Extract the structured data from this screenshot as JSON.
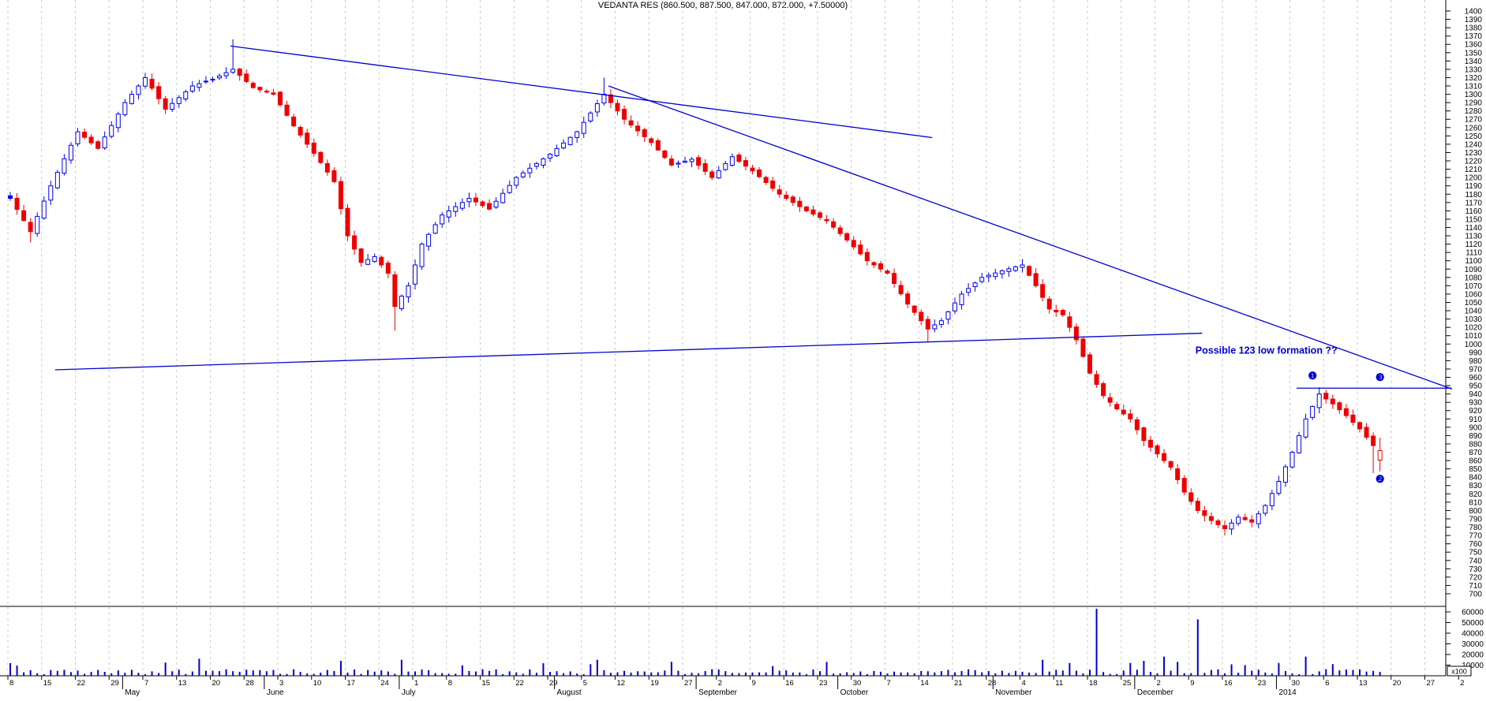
{
  "window": {
    "title": "VEDANTA RES (860.500, 887.500, 847.000, 872.000, +7.50000)"
  },
  "colors": {
    "up_candle": "#0000EE",
    "down_candle": "#EE0000",
    "trendline": "#0000CD",
    "annotation_text": "#0000CD",
    "grid": "#C9C9C9",
    "axis": "#000000",
    "volume_bar": "#0000CD",
    "background": "#FFFFFF"
  },
  "chart_data": {
    "type": "candlestick",
    "symbol": "VEDANTA RES",
    "title": "VEDANTA RES (860.500, 887.500, 847.000, 872.000, +7.50000)",
    "last_quote": {
      "open": 860.5,
      "high": 887.5,
      "low": 847.0,
      "close": 872.0,
      "change_label": "+7.50000"
    },
    "y_axis": {
      "min": 700,
      "max": 1400,
      "tick_step": 10
    },
    "volume_axis": {
      "labels": [
        10000,
        20000,
        30000,
        40000,
        50000,
        60000
      ],
      "multiplier_label": "x100"
    },
    "x_axis": {
      "week_labels": [
        "8",
        "15",
        "22",
        "29",
        "7",
        "13",
        "20",
        "28",
        "3",
        "10",
        "17",
        "24",
        "1",
        "8",
        "15",
        "22",
        "29",
        "5",
        "12",
        "19",
        "27",
        "2",
        "9",
        "16",
        "23",
        "30",
        "7",
        "14",
        "21",
        "28",
        "4",
        "11",
        "18",
        "25",
        "2",
        "9",
        "16",
        "23",
        "30",
        "6",
        "13",
        "20",
        "27",
        "2"
      ],
      "month_labels": [
        {
          "label": "May",
          "slot": 17
        },
        {
          "label": "June",
          "slot": 38
        },
        {
          "label": "July",
          "slot": 58
        },
        {
          "label": "August",
          "slot": 81
        },
        {
          "label": "September",
          "slot": 102
        },
        {
          "label": "October",
          "slot": 123
        },
        {
          "label": "November",
          "slot": 146
        },
        {
          "label": "December",
          "slot": 167
        },
        {
          "label": "2014",
          "slot": 188
        }
      ]
    },
    "num_candles": 204,
    "price_anchors_note": "approximate daily close path read from pixels; [slot, close, high_spike, low_spike]",
    "price_anchors": [
      [
        0,
        1175,
        null,
        null
      ],
      [
        3,
        1135,
        null,
        1122
      ],
      [
        6,
        1190,
        null,
        null
      ],
      [
        10,
        1255,
        null,
        null
      ],
      [
        13,
        1235,
        null,
        null
      ],
      [
        17,
        1290,
        null,
        null
      ],
      [
        20,
        1320,
        null,
        null
      ],
      [
        23,
        1282,
        null,
        null
      ],
      [
        27,
        1310,
        null,
        null
      ],
      [
        30,
        1318,
        null,
        null
      ],
      [
        33,
        1330,
        1366,
        null
      ],
      [
        36,
        1308,
        null,
        null
      ],
      [
        39,
        1300,
        null,
        null
      ],
      [
        42,
        1262,
        null,
        null
      ],
      [
        44,
        1240,
        null,
        null
      ],
      [
        46,
        1218,
        null,
        null
      ],
      [
        48,
        1195,
        null,
        null
      ],
      [
        50,
        1130,
        null,
        null
      ],
      [
        52,
        1098,
        null,
        null
      ],
      [
        54,
        1105,
        null,
        null
      ],
      [
        56,
        1085,
        null,
        null
      ],
      [
        57,
        1045,
        null,
        1016
      ],
      [
        59,
        1070,
        null,
        null
      ],
      [
        61,
        1120,
        null,
        null
      ],
      [
        64,
        1155,
        null,
        null
      ],
      [
        68,
        1175,
        null,
        null
      ],
      [
        71,
        1162,
        null,
        null
      ],
      [
        75,
        1200,
        null,
        null
      ],
      [
        80,
        1228,
        null,
        null
      ],
      [
        84,
        1255,
        null,
        null
      ],
      [
        88,
        1300,
        1320,
        null
      ],
      [
        91,
        1270,
        null,
        null
      ],
      [
        95,
        1242,
        null,
        null
      ],
      [
        98,
        1215,
        null,
        null
      ],
      [
        101,
        1222,
        null,
        null
      ],
      [
        104,
        1200,
        null,
        null
      ],
      [
        107,
        1225,
        null,
        null
      ],
      [
        110,
        1208,
        null,
        null
      ],
      [
        114,
        1180,
        null,
        null
      ],
      [
        118,
        1160,
        null,
        null
      ],
      [
        121,
        1148,
        null,
        null
      ],
      [
        124,
        1125,
        null,
        null
      ],
      [
        127,
        1100,
        null,
        null
      ],
      [
        130,
        1085,
        null,
        null
      ],
      [
        133,
        1048,
        null,
        null
      ],
      [
        136,
        1018,
        null,
        1002
      ],
      [
        138,
        1028,
        null,
        null
      ],
      [
        141,
        1060,
        null,
        null
      ],
      [
        144,
        1080,
        null,
        null
      ],
      [
        147,
        1088,
        null,
        null
      ],
      [
        150,
        1095,
        1102,
        null
      ],
      [
        152,
        1070,
        null,
        null
      ],
      [
        154,
        1042,
        null,
        null
      ],
      [
        156,
        1035,
        null,
        null
      ],
      [
        158,
        1005,
        null,
        null
      ],
      [
        160,
        965,
        null,
        null
      ],
      [
        162,
        938,
        null,
        null
      ],
      [
        164,
        922,
        null,
        null
      ],
      [
        166,
        910,
        null,
        null
      ],
      [
        168,
        884,
        null,
        null
      ],
      [
        170,
        868,
        null,
        null
      ],
      [
        172,
        852,
        null,
        null
      ],
      [
        174,
        822,
        null,
        null
      ],
      [
        176,
        800,
        null,
        null
      ],
      [
        178,
        788,
        null,
        null
      ],
      [
        180,
        778,
        null,
        770
      ],
      [
        182,
        792,
        null,
        null
      ],
      [
        184,
        786,
        null,
        null
      ],
      [
        186,
        806,
        null,
        null
      ],
      [
        188,
        835,
        null,
        null
      ],
      [
        190,
        870,
        null,
        null
      ],
      [
        192,
        910,
        null,
        null
      ],
      [
        194,
        940,
        948,
        null
      ],
      [
        196,
        928,
        null,
        null
      ],
      [
        198,
        914,
        null,
        null
      ],
      [
        200,
        898,
        null,
        null
      ],
      [
        201,
        888,
        null,
        null
      ],
      [
        202,
        878,
        null,
        845
      ],
      [
        203,
        872,
        887.5,
        847
      ]
    ],
    "volume_spikes": {
      "28": 16000,
      "49": 14000,
      "58": 15000,
      "87": 15000,
      "121": 13000,
      "153": 15000,
      "157": 12000,
      "161": 63000,
      "166": 12000,
      "168": 14000,
      "171": 18000,
      "176": 53000,
      "183": 10000,
      "188": 12000,
      "192": 18000,
      "196": 11000
    },
    "trendlines": [
      {
        "name": "downtrend-line-from-may-peak",
        "from": [
          33,
          1358
        ],
        "to": [
          137,
          1248
        ]
      },
      {
        "name": "downtrend-line-from-august-peak",
        "from": [
          89,
          1310
        ],
        "to": [
          214,
          946
        ]
      },
      {
        "name": "ascending-support-line",
        "from": [
          7,
          969
        ],
        "to": [
          177,
          1013
        ]
      },
      {
        "name": "point-1-breakout-level-line",
        "from": [
          191,
          947
        ],
        "to": [
          214,
          947
        ]
      }
    ],
    "annotations": {
      "note": {
        "label": "Possible 123 low formation ??",
        "slot": 176,
        "price": 992
      },
      "markers": [
        {
          "name": "point-1-marker",
          "glyph": "❶",
          "slot": 193,
          "price": 962
        },
        {
          "name": "point-3-marker",
          "glyph": "❸",
          "slot": 203,
          "price": 960
        },
        {
          "name": "point-2-marker",
          "glyph": "❷",
          "slot": 203,
          "price": 838
        }
      ]
    }
  }
}
